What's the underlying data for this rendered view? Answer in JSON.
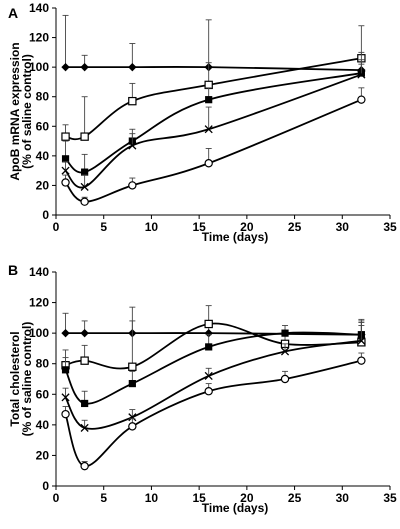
{
  "chart_data": [
    {
      "type": "line",
      "panel": "A",
      "xlabel": "Time (days)",
      "ylabel": [
        "ApoB mRNA expression",
        "(% of saline control)"
      ],
      "xlim": [
        0,
        35
      ],
      "ylim": [
        0,
        140
      ],
      "xticks": [
        0,
        5,
        10,
        15,
        20,
        25,
        30,
        35
      ],
      "yticks": [
        0,
        20,
        40,
        60,
        80,
        100,
        120,
        140
      ],
      "series": [
        {
          "marker": "diamond",
          "x": [
            1,
            3,
            8,
            16,
            32
          ],
          "y": [
            100,
            100,
            100,
            100,
            98
          ],
          "err": [
            35,
            8,
            16,
            32,
            4
          ]
        },
        {
          "marker": "open-square",
          "x": [
            1,
            3,
            8,
            16,
            32
          ],
          "y": [
            53,
            53,
            77,
            88,
            106
          ],
          "err": [
            8,
            27,
            12,
            15,
            22
          ]
        },
        {
          "marker": "filled-square",
          "x": [
            1,
            3,
            8,
            16,
            32
          ],
          "y": [
            38,
            29,
            50,
            78,
            96
          ],
          "err": [
            12,
            12,
            8,
            8,
            14
          ]
        },
        {
          "marker": "cross",
          "x": [
            1,
            3,
            8,
            16,
            32
          ],
          "y": [
            30,
            19,
            47,
            58,
            95
          ],
          "err": [
            6,
            8,
            8,
            15,
            10
          ]
        },
        {
          "marker": "open-circle",
          "x": [
            1,
            3,
            8,
            16,
            32
          ],
          "y": [
            22,
            9,
            20,
            35,
            78
          ],
          "err": [
            5,
            3,
            5,
            10,
            8
          ]
        }
      ]
    },
    {
      "type": "line",
      "panel": "B",
      "xlabel": "Time (days)",
      "ylabel": [
        "Total cholesterol",
        "(% of saline control)"
      ],
      "xlim": [
        0,
        35
      ],
      "ylim": [
        0,
        140
      ],
      "xticks": [
        0,
        5,
        10,
        15,
        20,
        25,
        30,
        35
      ],
      "yticks": [
        0,
        20,
        40,
        60,
        80,
        100,
        120,
        140
      ],
      "series": [
        {
          "marker": "diamond",
          "x": [
            1,
            3,
            8,
            16,
            32
          ],
          "y": [
            100,
            100,
            100,
            100,
            99
          ],
          "err": [
            13,
            8,
            8,
            8,
            8
          ]
        },
        {
          "marker": "open-square",
          "x": [
            1,
            3,
            8,
            16,
            24,
            32
          ],
          "y": [
            79,
            82,
            78,
            106,
            93,
            94
          ],
          "err": [
            10,
            10,
            39,
            12,
            6,
            14
          ]
        },
        {
          "marker": "filled-square",
          "x": [
            1,
            3,
            8,
            16,
            24,
            32
          ],
          "y": [
            76,
            54,
            67,
            91,
            100,
            99
          ],
          "err": [
            8,
            8,
            8,
            8,
            5,
            10
          ]
        },
        {
          "marker": "cross",
          "x": [
            1,
            3,
            8,
            16,
            24,
            32
          ],
          "y": [
            58,
            38,
            45,
            72,
            88,
            95
          ],
          "err": [
            6,
            5,
            5,
            5,
            5,
            10
          ]
        },
        {
          "marker": "open-circle",
          "x": [
            1,
            3,
            8,
            16,
            24,
            32
          ],
          "y": [
            47,
            13,
            39,
            62,
            70,
            82
          ],
          "err": [
            5,
            3,
            5,
            5,
            5,
            5
          ]
        }
      ]
    }
  ]
}
